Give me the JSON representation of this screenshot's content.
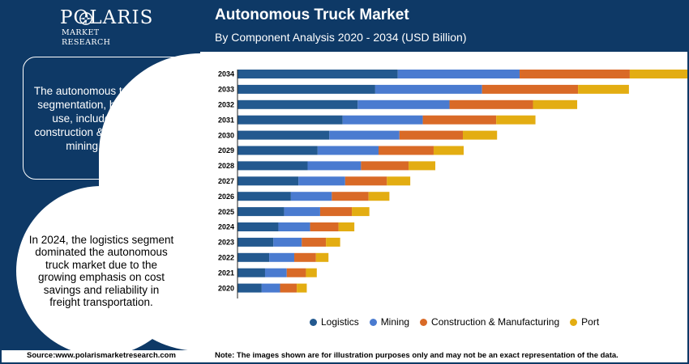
{
  "brand": {
    "name": "POLARIS",
    "tagline": "MARKET RESEARCH"
  },
  "header": {
    "title": "Autonomous Truck Market",
    "subtitle": "By Component Analysis 2020 - 2034 (USD Billion)"
  },
  "sidebar": {
    "description": "The autonomous truck market segmentation, based on end use, includes logistics, construction & manufacturing, mining, and port.",
    "highlight": "In 2024, the logistics segment dominated the autonomous truck market due to the growing emphasis on cost savings and reliability in freight transportation."
  },
  "footer": {
    "source": "Source:www.polarismarketresearch.com",
    "note": "Note: The images shown are for illustration purposes only and may not be an exact representation of the data."
  },
  "colors": {
    "navy": "#0e3966",
    "logistics": "#23598f",
    "mining": "#4a7bd0",
    "construction": "#d96a27",
    "port": "#e3ad12"
  },
  "chart_data": {
    "type": "bar",
    "orientation": "horizontal",
    "stacked": true,
    "categories": [
      "2034",
      "2033",
      "2032",
      "2031",
      "2030",
      "2029",
      "2028",
      "2027",
      "2026",
      "2025",
      "2024",
      "2023",
      "2022",
      "2021",
      "2020"
    ],
    "series": [
      {
        "name": "Logistics",
        "color": "#23598f",
        "values": [
          19.2,
          16.5,
          14.4,
          12.6,
          11.0,
          9.6,
          8.4,
          7.3,
          6.4,
          5.6,
          4.9,
          4.3,
          3.8,
          3.3,
          2.9
        ]
      },
      {
        "name": "Mining",
        "color": "#4a7bd0",
        "values": [
          14.6,
          12.8,
          11.0,
          9.6,
          8.4,
          7.3,
          6.4,
          5.6,
          4.9,
          4.3,
          3.8,
          3.4,
          3.0,
          2.6,
          2.2
        ]
      },
      {
        "name": "Construction & Manufacturing",
        "color": "#d96a27",
        "values": [
          13.2,
          11.5,
          10.0,
          8.8,
          7.6,
          6.6,
          5.7,
          5.0,
          4.4,
          3.8,
          3.4,
          2.9,
          2.6,
          2.3,
          2.0
        ]
      },
      {
        "name": "Port",
        "color": "#e3ad12",
        "values": [
          7.0,
          6.1,
          5.3,
          4.7,
          4.1,
          3.6,
          3.2,
          2.8,
          2.5,
          2.1,
          1.9,
          1.7,
          1.5,
          1.3,
          1.2
        ]
      }
    ],
    "title": "Autonomous Truck Market",
    "xlabel": "",
    "ylabel": "",
    "xlim": [
      0,
      54
    ],
    "grid": false,
    "legend_position": "bottom"
  }
}
